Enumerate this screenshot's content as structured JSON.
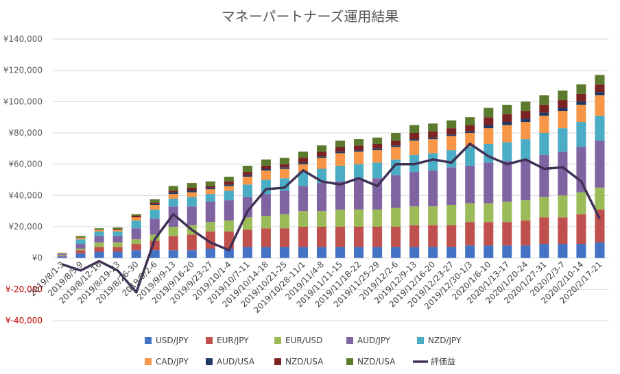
{
  "chart_data": {
    "type": "bar",
    "title": "マネーパートナーズ運用結果",
    "ylim": [
      -40000,
      140000
    ],
    "y_ticks": [
      -40000,
      -20000,
      0,
      20000,
      40000,
      60000,
      80000,
      100000,
      120000,
      140000
    ],
    "y_tick_labels": [
      "¥-40,000",
      "¥-20,000",
      "¥0",
      "¥20,000",
      "¥40,000",
      "¥60,000",
      "¥80,000",
      "¥100,000",
      "¥120,000",
      "¥140,000"
    ],
    "negative_tick_color": "#c00000",
    "grid": true,
    "legend_position": "bottom",
    "categories": [
      "2019/8/1-3",
      "2019/8/5-9",
      "2019/8/12-16",
      "2019/8/19-23",
      "2019/8/26-30",
      "2019/9/2-6",
      "2019/9/9-13",
      "2019/9/16-20",
      "2019/9/23-27",
      "2019/10/1-4",
      "2019/10/7-11",
      "2019/10/14-18",
      "2019/10/21-25",
      "2019/10/28-11/1",
      "2019/11/4-8",
      "2019/11/11-15",
      "2019/11/18-22",
      "2019/11/25-29",
      "2019/12/2-6",
      "2019/12/9-13",
      "2019/12/16-20",
      "2019/12/23-27",
      "2019/12/30-1/3",
      "2020/1/6-10",
      "2020/1/13-17",
      "2020/1/20-24",
      "2020/1/27-31",
      "2020/2/3-7",
      "2020/2/10-14",
      "2020/2/17-21"
    ],
    "series": [
      {
        "name": "USD/JPY",
        "type": "bar",
        "color": "#4472c4",
        "values": [
          1000,
          3000,
          4000,
          4000,
          5000,
          5000,
          5000,
          5000,
          6000,
          6000,
          7000,
          7000,
          7000,
          7000,
          7000,
          7000,
          7000,
          7000,
          7000,
          7000,
          7000,
          7000,
          8000,
          8000,
          8000,
          8000,
          9000,
          9000,
          9000,
          10000
        ]
      },
      {
        "name": "EUR/JPY",
        "type": "bar",
        "color": "#c0504d",
        "values": [
          500,
          2000,
          3000,
          3000,
          4000,
          6000,
          9000,
          10000,
          11000,
          11000,
          11000,
          12000,
          12000,
          13000,
          13000,
          13000,
          13000,
          13000,
          13000,
          14000,
          14000,
          14000,
          15000,
          15000,
          15000,
          16000,
          17000,
          17000,
          19000,
          21000
        ]
      },
      {
        "name": "EUR/USD",
        "type": "bar",
        "color": "#9bbb59",
        "values": [
          500,
          1000,
          3000,
          3000,
          3000,
          4000,
          6000,
          6000,
          6000,
          7000,
          8000,
          8000,
          9000,
          10000,
          10000,
          11000,
          11000,
          11000,
          12000,
          12000,
          12000,
          13000,
          12000,
          12000,
          13000,
          13000,
          13000,
          14000,
          14000,
          14000
        ]
      },
      {
        "name": "AUD/JPY",
        "type": "bar",
        "color": "#8064a2",
        "values": [
          500,
          3000,
          4000,
          4000,
          7000,
          10000,
          13000,
          12000,
          13000,
          13000,
          13000,
          14000,
          15000,
          16000,
          18000,
          18000,
          19000,
          20000,
          21000,
          22000,
          23000,
          24000,
          24000,
          26000,
          26000,
          26000,
          27000,
          28000,
          29000,
          30000
        ]
      },
      {
        "name": "NZD/JPY",
        "type": "bar",
        "color": "#4bacc6",
        "values": [
          500,
          3000,
          3000,
          3000,
          5000,
          6000,
          5000,
          6000,
          5000,
          6000,
          8000,
          9000,
          8000,
          9000,
          9000,
          10000,
          10000,
          10000,
          10000,
          11000,
          11000,
          11000,
          12000,
          12000,
          12000,
          13000,
          14000,
          15000,
          16000,
          16000
        ]
      },
      {
        "name": "CAD/JPY",
        "type": "bar",
        "color": "#f79646",
        "values": [
          500,
          1000,
          1000,
          1000,
          2000,
          3000,
          3000,
          3000,
          3000,
          3000,
          5000,
          6000,
          6000,
          5000,
          7000,
          8000,
          8000,
          8000,
          8000,
          9000,
          9000,
          9000,
          9000,
          10000,
          11000,
          11000,
          11000,
          11000,
          11000,
          13000
        ]
      },
      {
        "name": "AUD/USA",
        "type": "bar",
        "color": "#1f3864",
        "values": [
          0,
          0,
          0,
          0,
          0,
          500,
          1000,
          1000,
          1000,
          1000,
          1000,
          1000,
          1000,
          1000,
          1000,
          1000,
          1000,
          1000,
          1000,
          1000,
          1000,
          1000,
          1000,
          2000,
          2000,
          2000,
          2000,
          2000,
          2000,
          2000
        ]
      },
      {
        "name": "NZD/USA",
        "type": "bar",
        "color": "#7b2222",
        "values": [
          0,
          0,
          0,
          500,
          1000,
          1000,
          1000,
          2000,
          1000,
          2000,
          2000,
          2000,
          2000,
          3000,
          3000,
          3000,
          3000,
          3000,
          3000,
          4000,
          4000,
          4000,
          4000,
          5000,
          5000,
          5000,
          5000,
          5000,
          5000,
          5000
        ]
      },
      {
        "name": "NZD/USA",
        "type": "bar",
        "color": "#5b7a2e",
        "values": [
          0,
          1000,
          1000,
          1000,
          1000,
          2000,
          3000,
          3000,
          3000,
          3000,
          4000,
          4000,
          4000,
          4000,
          4000,
          4000,
          4000,
          4000,
          5000,
          5000,
          5000,
          5000,
          5000,
          6000,
          6000,
          6000,
          6000,
          6000,
          6000,
          6000
        ]
      },
      {
        "name": "評価益",
        "type": "line",
        "color": "#403256",
        "values": [
          -4000,
          -8000,
          -2000,
          -8000,
          -22000,
          12000,
          28000,
          18000,
          10000,
          5000,
          30000,
          44000,
          45000,
          56000,
          49000,
          47000,
          51000,
          46000,
          60000,
          60000,
          63000,
          61000,
          73000,
          65000,
          60000,
          63000,
          57000,
          58000,
          49000,
          25000
        ]
      }
    ]
  }
}
